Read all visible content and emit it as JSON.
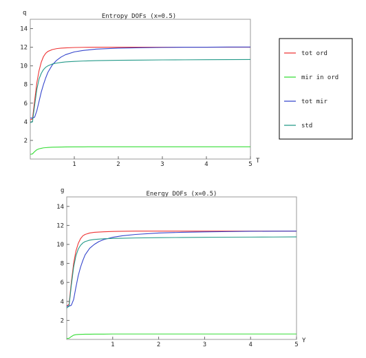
{
  "colors": {
    "tot_ord": "#ee3333",
    "mir_in_ord": "#33dd33",
    "tot_mir": "#3344cc",
    "std": "#229988"
  },
  "legend": {
    "placement": "right of top chart",
    "entries": [
      {
        "label": "tot ord",
        "color": "#ee3333"
      },
      {
        "label": "mir in ord",
        "color": "#33dd33"
      },
      {
        "label": "tot mir",
        "color": "#3344cc"
      },
      {
        "label": "std",
        "color": "#229988"
      }
    ]
  },
  "chart_data": [
    {
      "type": "line",
      "title": "Entropy DOFs (x=0.5)",
      "xlabel": "T",
      "ylabel": "q",
      "xlim": [
        0,
        5
      ],
      "ylim": [
        0,
        15
      ],
      "xticks": [
        "1",
        "2",
        "3",
        "4",
        "5"
      ],
      "yticks": [
        "2",
        "4",
        "6",
        "8",
        "10",
        "12",
        "14"
      ],
      "x": [
        0,
        0.05,
        0.1,
        0.15,
        0.2,
        0.25,
        0.3,
        0.35,
        0.4,
        0.5,
        0.6,
        0.7,
        0.8,
        1.0,
        1.2,
        1.5,
        2.0,
        2.5,
        3.0,
        3.5,
        4.0,
        4.5,
        5.0
      ],
      "series": [
        {
          "name": "tot ord",
          "color": "#ee3333",
          "values": [
            4.2,
            4.3,
            6.3,
            8.2,
            9.5,
            10.4,
            11.0,
            11.35,
            11.55,
            11.75,
            11.85,
            11.9,
            11.93,
            11.97,
            11.99,
            12.0,
            12.0,
            12.0,
            12.0,
            12.0,
            12.0,
            12.0,
            12.0
          ]
        },
        {
          "name": "mir in ord",
          "color": "#33dd33",
          "values": [
            0.5,
            0.55,
            0.8,
            1.0,
            1.1,
            1.15,
            1.2,
            1.22,
            1.24,
            1.27,
            1.28,
            1.29,
            1.3,
            1.31,
            1.31,
            1.32,
            1.32,
            1.32,
            1.32,
            1.32,
            1.32,
            1.32,
            1.32
          ]
        },
        {
          "name": "tot mir",
          "color": "#3344cc",
          "values": [
            4.4,
            4.4,
            4.5,
            5.2,
            6.2,
            7.2,
            8.0,
            8.7,
            9.3,
            10.1,
            10.6,
            10.95,
            11.2,
            11.5,
            11.65,
            11.8,
            11.9,
            11.95,
            11.98,
            12.0,
            12.0,
            12.02,
            12.02
          ]
        },
        {
          "name": "std",
          "color": "#229988",
          "values": [
            3.9,
            4.0,
            5.8,
            7.5,
            8.6,
            9.2,
            9.6,
            9.85,
            10.0,
            10.2,
            10.3,
            10.37,
            10.42,
            10.48,
            10.52,
            10.56,
            10.6,
            10.62,
            10.64,
            10.65,
            10.66,
            10.67,
            10.68
          ]
        }
      ]
    },
    {
      "type": "line",
      "title": "Energy DOFs (x=0.5)",
      "xlabel": "Y",
      "ylabel": "g",
      "xlim": [
        0,
        5
      ],
      "ylim": [
        0,
        15
      ],
      "xticks": [
        "1",
        "2",
        "3",
        "4",
        "5"
      ],
      "yticks": [
        "2",
        "4",
        "6",
        "8",
        "10",
        "12",
        "14"
      ],
      "x": [
        0,
        0.05,
        0.1,
        0.15,
        0.2,
        0.25,
        0.3,
        0.35,
        0.4,
        0.5,
        0.6,
        0.7,
        0.8,
        1.0,
        1.2,
        1.5,
        2.0,
        2.5,
        3.0,
        3.5,
        4.0,
        4.5,
        5.0
      ],
      "series": [
        {
          "name": "tot ord",
          "color": "#ee3333",
          "values": [
            3.5,
            3.7,
            6.0,
            8.0,
            9.3,
            10.1,
            10.6,
            10.9,
            11.05,
            11.2,
            11.27,
            11.3,
            11.33,
            11.36,
            11.38,
            11.4,
            11.4,
            11.4,
            11.4,
            11.4,
            11.4,
            11.4,
            11.4
          ]
        },
        {
          "name": "mir in ord",
          "color": "#33dd33",
          "values": [
            0.1,
            0.12,
            0.3,
            0.45,
            0.5,
            0.52,
            0.53,
            0.54,
            0.55,
            0.55,
            0.56,
            0.56,
            0.56,
            0.57,
            0.57,
            0.57,
            0.57,
            0.57,
            0.57,
            0.57,
            0.57,
            0.57,
            0.57
          ]
        },
        {
          "name": "tot mir",
          "color": "#3344cc",
          "values": [
            3.5,
            3.5,
            3.6,
            4.2,
            5.5,
            6.7,
            7.6,
            8.3,
            8.9,
            9.6,
            10.0,
            10.3,
            10.5,
            10.75,
            10.9,
            11.05,
            11.2,
            11.27,
            11.32,
            11.35,
            11.38,
            11.39,
            11.4
          ]
        },
        {
          "name": "std",
          "color": "#229988",
          "values": [
            3.3,
            3.5,
            5.7,
            7.6,
            8.8,
            9.5,
            9.9,
            10.15,
            10.3,
            10.45,
            10.52,
            10.56,
            10.59,
            10.63,
            10.65,
            10.68,
            10.71,
            10.73,
            10.75,
            10.76,
            10.77,
            10.78,
            10.79
          ]
        }
      ]
    }
  ]
}
